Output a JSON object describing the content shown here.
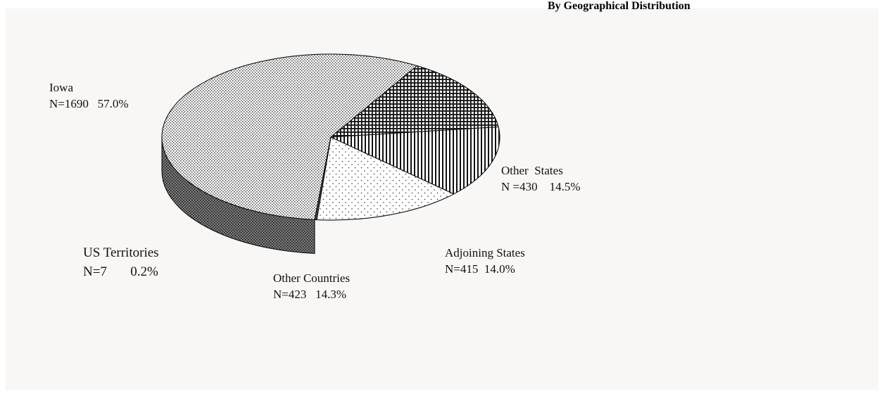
{
  "chart_data": {
    "type": "pie",
    "title": "By Geographical Distribution",
    "slices": [
      {
        "name": "Iowa",
        "count_label": "N=1690",
        "pct_label": "57.0%",
        "value": 57.0,
        "pattern": "dots-dense"
      },
      {
        "name": "Other  States",
        "count_label": "N =430",
        "pct_label": "14.5%",
        "value": 14.5,
        "pattern": "grid"
      },
      {
        "name": "Adjoining States",
        "count_label": "N=415",
        "pct_label": "14.0%",
        "value": 14.0,
        "pattern": "vertical-lines"
      },
      {
        "name": "Other Countries",
        "count_label": "N=423",
        "pct_label": "14.3%",
        "value": 14.3,
        "pattern": "dots-sparse"
      },
      {
        "name": "US Territories",
        "count_label": "N=7",
        "pct_label": "0.2%",
        "value": 0.2,
        "pattern": "solid"
      }
    ],
    "colors": {
      "background": "#f8f7f5",
      "outline": "#111111"
    }
  }
}
